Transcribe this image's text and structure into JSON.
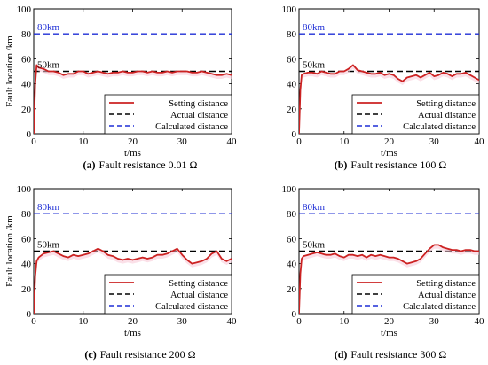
{
  "chart_data": [
    {
      "type": "line",
      "caption_tag": "(a)",
      "caption_text": "Fault resistance 0.01 Ω",
      "xlabel": "t/ms",
      "ylabel": "Fault location /km",
      "xlim": [
        0,
        40
      ],
      "ylim": [
        0,
        100
      ],
      "xticks": [
        "0",
        "10",
        "20",
        "30",
        "40"
      ],
      "yticks": [
        "0",
        "20",
        "40",
        "60",
        "80",
        "100"
      ],
      "annotations": [
        "80km",
        "50km"
      ],
      "legend_position": "bottom-right",
      "series": [
        {
          "name": "Setting distance",
          "color": "#cc2222",
          "style": "solid",
          "x": [
            0,
            0.3,
            0.6,
            1,
            2,
            3,
            4,
            5,
            6,
            7,
            8,
            9,
            10,
            11,
            12,
            13,
            14,
            15,
            16,
            17,
            18,
            19,
            20,
            21,
            22,
            23,
            24,
            25,
            26,
            27,
            28,
            29,
            30,
            31,
            32,
            33,
            34,
            35,
            36,
            37,
            38,
            39,
            40
          ],
          "y": [
            0,
            40,
            55,
            53,
            52,
            50,
            50,
            49,
            47,
            48,
            48,
            50,
            50,
            48,
            49,
            50,
            49,
            48,
            49,
            49,
            50,
            49,
            49,
            50,
            50,
            49,
            50,
            49,
            49,
            50,
            49,
            50,
            50,
            50,
            49,
            49,
            50,
            49,
            48,
            47,
            47,
            48,
            47
          ]
        },
        {
          "name": "Actual distance",
          "color": "#000000",
          "style": "dash",
          "x": [
            0,
            40
          ],
          "y": [
            50,
            50
          ]
        },
        {
          "name": "Calculated distance",
          "color": "#1f2fd6",
          "style": "dash",
          "x": [
            0,
            40
          ],
          "y": [
            80,
            80
          ]
        }
      ]
    },
    {
      "type": "line",
      "caption_tag": "(b)",
      "caption_text": "Fault resistance 100 Ω",
      "xlabel": "t/ms",
      "ylabel": "",
      "xlim": [
        0,
        40
      ],
      "ylim": [
        0,
        100
      ],
      "xticks": [
        "0",
        "10",
        "20",
        "30",
        "40"
      ],
      "yticks": [
        "0",
        "20",
        "40",
        "60",
        "80",
        "100"
      ],
      "annotations": [
        "80km",
        "50km"
      ],
      "legend_position": "bottom-right",
      "series": [
        {
          "name": "Setting distance",
          "color": "#cc2222",
          "style": "solid",
          "x": [
            0,
            0.3,
            0.6,
            1,
            2,
            3,
            4,
            5,
            6,
            7,
            8,
            9,
            10,
            11,
            12,
            13,
            14,
            15,
            16,
            17,
            18,
            19,
            20,
            21,
            22,
            23,
            24,
            25,
            26,
            27,
            28,
            29,
            30,
            31,
            32,
            33,
            34,
            35,
            36,
            37,
            38,
            39,
            40
          ],
          "y": [
            0,
            35,
            47,
            48,
            49,
            49,
            48,
            50,
            49,
            48,
            48,
            50,
            50,
            52,
            55,
            51,
            50,
            49,
            48,
            48,
            49,
            47,
            48,
            47,
            44,
            42,
            45,
            46,
            47,
            45,
            47,
            49,
            46,
            47,
            49,
            48,
            46,
            48,
            48,
            49,
            47,
            45,
            43
          ]
        },
        {
          "name": "Actual distance",
          "color": "#000000",
          "style": "dash",
          "x": [
            0,
            40
          ],
          "y": [
            50,
            50
          ]
        },
        {
          "name": "Calculated distance",
          "color": "#1f2fd6",
          "style": "dash",
          "x": [
            0,
            40
          ],
          "y": [
            80,
            80
          ]
        }
      ]
    },
    {
      "type": "line",
      "caption_tag": "(c)",
      "caption_text": "Fault resistance 200 Ω",
      "xlabel": "t/ms",
      "ylabel": "Fault location /km",
      "xlim": [
        0,
        40
      ],
      "ylim": [
        0,
        100
      ],
      "xticks": [
        "0",
        "10",
        "20",
        "30",
        "40"
      ],
      "yticks": [
        "0",
        "20",
        "40",
        "60",
        "80",
        "100"
      ],
      "annotations": [
        "80km",
        "50km"
      ],
      "legend_position": "bottom-right",
      "series": [
        {
          "name": "Setting distance",
          "color": "#cc2222",
          "style": "solid",
          "x": [
            0,
            0.3,
            0.6,
            1,
            2,
            3,
            4,
            5,
            6,
            7,
            8,
            9,
            10,
            11,
            12,
            13,
            14,
            15,
            16,
            17,
            18,
            19,
            20,
            21,
            22,
            23,
            24,
            25,
            26,
            27,
            28,
            29,
            30,
            31,
            32,
            33,
            34,
            35,
            36,
            37,
            38,
            39,
            40
          ],
          "y": [
            0,
            30,
            42,
            45,
            48,
            49,
            50,
            48,
            46,
            45,
            47,
            46,
            47,
            48,
            50,
            52,
            50,
            47,
            46,
            44,
            43,
            44,
            43,
            44,
            45,
            44,
            45,
            47,
            47,
            48,
            50,
            52,
            47,
            43,
            40,
            41,
            42,
            44,
            48,
            50,
            44,
            42,
            44
          ]
        },
        {
          "name": "Actual distance",
          "color": "#000000",
          "style": "dash",
          "x": [
            0,
            40
          ],
          "y": [
            50,
            50
          ]
        },
        {
          "name": "Calculated distance",
          "color": "#1f2fd6",
          "style": "dash",
          "x": [
            0,
            40
          ],
          "y": [
            80,
            80
          ]
        }
      ]
    },
    {
      "type": "line",
      "caption_tag": "(d)",
      "caption_text": "Fault resistance 300 Ω",
      "xlabel": "t/ms",
      "ylabel": "",
      "xlim": [
        0,
        40
      ],
      "ylim": [
        0,
        100
      ],
      "xticks": [
        "0",
        "10",
        "20",
        "30",
        "40"
      ],
      "yticks": [
        "0",
        "20",
        "40",
        "60",
        "80",
        "100"
      ],
      "annotations": [
        "80km",
        "50km"
      ],
      "legend_position": "bottom-right",
      "series": [
        {
          "name": "Setting distance",
          "color": "#cc2222",
          "style": "solid",
          "x": [
            0,
            0.3,
            0.6,
            1,
            2,
            3,
            4,
            5,
            6,
            7,
            8,
            9,
            10,
            11,
            12,
            13,
            14,
            15,
            16,
            17,
            18,
            19,
            20,
            21,
            22,
            23,
            24,
            25,
            26,
            27,
            28,
            29,
            30,
            31,
            32,
            33,
            34,
            35,
            36,
            37,
            38,
            39,
            40
          ],
          "y": [
            0,
            32,
            44,
            46,
            47,
            48,
            49,
            48,
            47,
            47,
            48,
            46,
            45,
            47,
            47,
            46,
            47,
            45,
            47,
            46,
            47,
            46,
            45,
            45,
            44,
            42,
            40,
            41,
            42,
            44,
            48,
            52,
            55,
            55,
            53,
            52,
            51,
            51,
            50,
            51,
            51,
            50,
            50
          ]
        },
        {
          "name": "Actual distance",
          "color": "#000000",
          "style": "dash",
          "x": [
            0,
            40
          ],
          "y": [
            50,
            50
          ]
        },
        {
          "name": "Calculated distance",
          "color": "#1f2fd6",
          "style": "dash",
          "x": [
            0,
            40
          ],
          "y": [
            80,
            80
          ]
        }
      ]
    }
  ]
}
